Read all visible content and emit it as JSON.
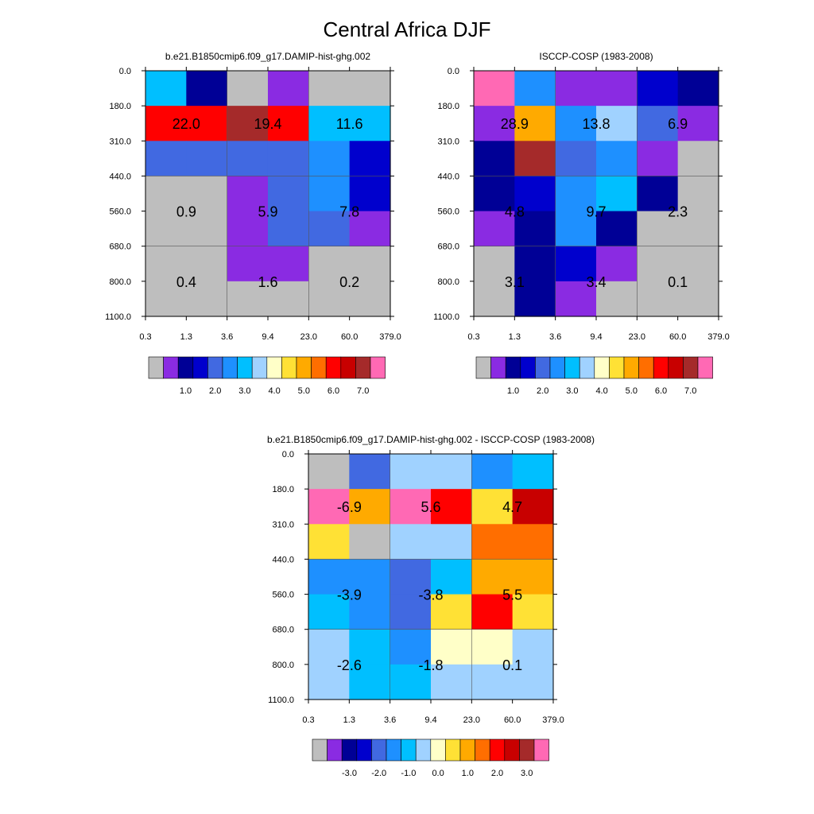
{
  "figure_title": "Central Africa DJF",
  "chart_data": [
    {
      "type": "heatmap",
      "title": "b.e21.B1850cmip6.f09_g17.DAMIP-hist-ghg.002",
      "x_ticks": [
        "0.3",
        "1.3",
        "3.6",
        "9.4",
        "23.0",
        "60.0",
        "379.0"
      ],
      "y_ticks": [
        "0.0",
        "180.0",
        "310.0",
        "440.0",
        "560.0",
        "680.0",
        "800.0",
        "1100.0"
      ],
      "cells": [
        [
          "#00BFFF",
          "#000096",
          "#BEBEBE",
          "#8A2BE2",
          "#BEBEBE",
          "#BEBEBE"
        ],
        [
          "#FF0000",
          "#FF0000",
          "#A52A2A",
          "#FF0000",
          "#00BFFF",
          "#00BFFF"
        ],
        [
          "#4169E1",
          "#4169E1",
          "#4169E1",
          "#4169E1",
          "#1E90FF",
          "#0000CD"
        ],
        [
          "#BEBEBE",
          "#BEBEBE",
          "#8A2BE2",
          "#4169E1",
          "#1E90FF",
          "#0000CD"
        ],
        [
          "#BEBEBE",
          "#BEBEBE",
          "#8A2BE2",
          "#4169E1",
          "#4169E1",
          "#8A2BE2"
        ],
        [
          "#BEBEBE",
          "#BEBEBE",
          "#8A2BE2",
          "#8A2BE2",
          "#BEBEBE",
          "#BEBEBE"
        ],
        [
          "#BEBEBE",
          "#BEBEBE",
          "#BEBEBE",
          "#BEBEBE",
          "#BEBEBE",
          "#BEBEBE"
        ]
      ],
      "block_labels": [
        [
          "22.0",
          "19.4",
          "11.6"
        ],
        [
          "0.9",
          "5.9",
          "7.8"
        ],
        [
          "0.4",
          "1.6",
          "0.2"
        ]
      ],
      "colorbar": {
        "colors": [
          "#BEBEBE",
          "#8A2BE2",
          "#000096",
          "#0000CD",
          "#4169E1",
          "#1E90FF",
          "#00BFFF",
          "#A0D2FF",
          "#FFFFC8",
          "#FFE135",
          "#FFAA00",
          "#FF6E00",
          "#FF0000",
          "#C80000",
          "#A52A2A",
          "#FF69B4"
        ],
        "labels": [
          "1.0",
          "2.0",
          "3.0",
          "4.0",
          "5.0",
          "6.0",
          "7.0"
        ]
      }
    },
    {
      "type": "heatmap",
      "title": "ISCCP-COSP (1983-2008)",
      "x_ticks": [
        "0.3",
        "1.3",
        "3.6",
        "9.4",
        "23.0",
        "60.0",
        "379.0"
      ],
      "y_ticks": [
        "0.0",
        "180.0",
        "310.0",
        "440.0",
        "560.0",
        "680.0",
        "800.0",
        "1100.0"
      ],
      "cells": [
        [
          "#FF69B4",
          "#1E90FF",
          "#8A2BE2",
          "#8A2BE2",
          "#0000CD",
          "#000096"
        ],
        [
          "#8A2BE2",
          "#FFAA00",
          "#1E90FF",
          "#A0D2FF",
          "#4169E1",
          "#8A2BE2"
        ],
        [
          "#000096",
          "#A52A2A",
          "#4169E1",
          "#1E90FF",
          "#8A2BE2",
          "#BEBEBE"
        ],
        [
          "#000096",
          "#0000CD",
          "#1E90FF",
          "#00BFFF",
          "#000096",
          "#BEBEBE"
        ],
        [
          "#8A2BE2",
          "#000096",
          "#1E90FF",
          "#000096",
          "#BEBEBE",
          "#BEBEBE"
        ],
        [
          "#BEBEBE",
          "#000096",
          "#0000CD",
          "#8A2BE2",
          "#BEBEBE",
          "#BEBEBE"
        ],
        [
          "#BEBEBE",
          "#000096",
          "#8A2BE2",
          "#BEBEBE",
          "#BEBEBE",
          "#BEBEBE"
        ]
      ],
      "block_labels": [
        [
          "28.9",
          "13.8",
          "6.9"
        ],
        [
          "4.8",
          "9.7",
          "2.3"
        ],
        [
          "3.1",
          "3.4",
          "0.1"
        ]
      ],
      "colorbar": {
        "colors": [
          "#BEBEBE",
          "#8A2BE2",
          "#000096",
          "#0000CD",
          "#4169E1",
          "#1E90FF",
          "#00BFFF",
          "#A0D2FF",
          "#FFFFC8",
          "#FFE135",
          "#FFAA00",
          "#FF6E00",
          "#FF0000",
          "#C80000",
          "#A52A2A",
          "#FF69B4"
        ],
        "labels": [
          "1.0",
          "2.0",
          "3.0",
          "4.0",
          "5.0",
          "6.0",
          "7.0"
        ]
      }
    },
    {
      "type": "heatmap",
      "title": "b.e21.B1850cmip6.f09_g17.DAMIP-hist-ghg.002 - ISCCP-COSP (1983-2008)",
      "x_ticks": [
        "0.3",
        "1.3",
        "3.6",
        "9.4",
        "23.0",
        "60.0",
        "379.0"
      ],
      "y_ticks": [
        "0.0",
        "180.0",
        "310.0",
        "440.0",
        "560.0",
        "680.0",
        "800.0",
        "1100.0"
      ],
      "cells": [
        [
          "#BEBEBE",
          "#4169E1",
          "#A0D2FF",
          "#A0D2FF",
          "#1E90FF",
          "#00BFFF"
        ],
        [
          "#FF69B4",
          "#FFAA00",
          "#FF69B4",
          "#FF0000",
          "#FFE135",
          "#C80000"
        ],
        [
          "#FFE135",
          "#BEBEBE",
          "#A0D2FF",
          "#A0D2FF",
          "#FF6E00",
          "#FF6E00"
        ],
        [
          "#1E90FF",
          "#1E90FF",
          "#4169E1",
          "#00BFFF",
          "#FFAA00",
          "#FFAA00"
        ],
        [
          "#00BFFF",
          "#1E90FF",
          "#4169E1",
          "#FFE135",
          "#FF0000",
          "#FFE135"
        ],
        [
          "#A0D2FF",
          "#00BFFF",
          "#1E90FF",
          "#FFFFC8",
          "#FFFFC8",
          "#A0D2FF"
        ],
        [
          "#A0D2FF",
          "#00BFFF",
          "#00BFFF",
          "#A0D2FF",
          "#A0D2FF",
          "#A0D2FF"
        ]
      ],
      "block_labels": [
        [
          "-6.9",
          "5.6",
          "4.7"
        ],
        [
          "-3.9",
          "-3.8",
          "5.5"
        ],
        [
          "-2.6",
          "-1.8",
          "0.1"
        ]
      ],
      "colorbar": {
        "colors": [
          "#BEBEBE",
          "#8A2BE2",
          "#000096",
          "#0000CD",
          "#4169E1",
          "#1E90FF",
          "#00BFFF",
          "#A0D2FF",
          "#FFFFC8",
          "#FFE135",
          "#FFAA00",
          "#FF6E00",
          "#FF0000",
          "#C80000",
          "#A52A2A",
          "#FF69B4"
        ],
        "labels": [
          "-3.0",
          "-2.0",
          "-1.0",
          "0.0",
          "1.0",
          "2.0",
          "3.0"
        ]
      }
    }
  ]
}
